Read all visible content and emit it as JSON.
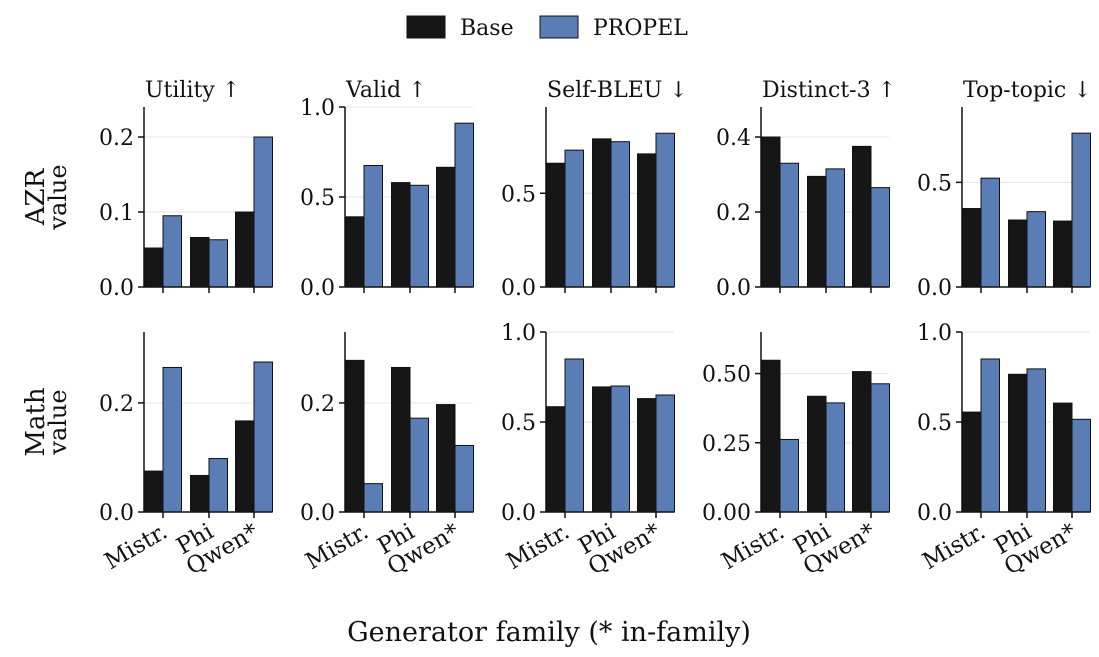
{
  "colors": {
    "base": "#161616",
    "propel": "#5a7db5"
  },
  "legend": [
    "Base",
    "PROPEL"
  ],
  "xlabel": "Generator family (* in-family)",
  "rows": [
    {
      "label": "AZR",
      "sub": "value"
    },
    {
      "label": "Math",
      "sub": "value"
    }
  ],
  "chart_data": {
    "type": "bar",
    "categories": [
      "Mistr.",
      "Phi",
      "Qwen*"
    ],
    "series_names": [
      "Base",
      "PROPEL"
    ],
    "panels": [
      {
        "row": 0,
        "col": 0,
        "title": "Utility ↑",
        "ylim": [
          0,
          0.24
        ],
        "yticks": [
          0.0,
          0.1,
          0.2
        ],
        "ytick_labels": [
          "0.0",
          "0.1",
          "0.2"
        ],
        "series": [
          {
            "name": "Base",
            "values": [
              0.052,
              0.066,
              0.1
            ]
          },
          {
            "name": "PROPEL",
            "values": [
              0.095,
              0.063,
              0.2
            ]
          }
        ]
      },
      {
        "row": 0,
        "col": 1,
        "title": "Valid ↑",
        "ylim": [
          0,
          1.0
        ],
        "yticks": [
          0.0,
          0.5,
          1.0
        ],
        "ytick_labels": [
          "0.0",
          "0.5",
          "1.0"
        ],
        "series": [
          {
            "name": "Base",
            "values": [
              0.39,
              0.58,
              0.665
            ]
          },
          {
            "name": "PROPEL",
            "values": [
              0.675,
              0.565,
              0.91
            ]
          }
        ]
      },
      {
        "row": 0,
        "col": 2,
        "title": "Self-BLEU ↓",
        "ylim": [
          0,
          0.96
        ],
        "yticks": [
          0.0,
          0.5
        ],
        "ytick_labels": [
          "0.0",
          "0.5"
        ],
        "series": [
          {
            "name": "Base",
            "values": [
              0.66,
              0.79,
              0.71
            ]
          },
          {
            "name": "PROPEL",
            "values": [
              0.73,
              0.775,
              0.82
            ]
          }
        ]
      },
      {
        "row": 0,
        "col": 3,
        "title": "Distinct-3 ↑",
        "ylim": [
          0,
          0.48
        ],
        "yticks": [
          0.0,
          0.2,
          0.4
        ],
        "ytick_labels": [
          "0.0",
          "0.2",
          "0.4"
        ],
        "series": [
          {
            "name": "Base",
            "values": [
              0.4,
              0.295,
              0.375
            ]
          },
          {
            "name": "PROPEL",
            "values": [
              0.33,
              0.315,
              0.265
            ]
          }
        ]
      },
      {
        "row": 0,
        "col": 4,
        "title": "Top-topic ↓",
        "ylim": [
          0,
          0.86
        ],
        "yticks": [
          0.0,
          0.5
        ],
        "ytick_labels": [
          "0.0",
          "0.5"
        ],
        "series": [
          {
            "name": "Base",
            "values": [
              0.375,
              0.32,
              0.315
            ]
          },
          {
            "name": "PROPEL",
            "values": [
              0.52,
              0.36,
              0.735
            ]
          }
        ]
      },
      {
        "row": 1,
        "col": 0,
        "title": "",
        "ylim": [
          0,
          0.33
        ],
        "yticks": [
          0.0,
          0.2
        ],
        "ytick_labels": [
          "0.0",
          "0.2"
        ],
        "series": [
          {
            "name": "Base",
            "values": [
              0.075,
              0.067,
              0.167
            ]
          },
          {
            "name": "PROPEL",
            "values": [
              0.265,
              0.098,
              0.275
            ]
          }
        ]
      },
      {
        "row": 1,
        "col": 1,
        "title": "",
        "ylim": [
          0,
          0.33
        ],
        "yticks": [
          0.0,
          0.2
        ],
        "ytick_labels": [
          "0.0",
          "0.2"
        ],
        "series": [
          {
            "name": "Base",
            "values": [
              0.278,
              0.265,
              0.197
            ]
          },
          {
            "name": "PROPEL",
            "values": [
              0.052,
              0.172,
              0.122
            ]
          }
        ]
      },
      {
        "row": 1,
        "col": 2,
        "title": "",
        "ylim": [
          0,
          1.0
        ],
        "yticks": [
          0.0,
          0.5,
          1.0
        ],
        "ytick_labels": [
          "0.0",
          "0.5",
          "1.0"
        ],
        "series": [
          {
            "name": "Base",
            "values": [
              0.585,
              0.695,
              0.63
            ]
          },
          {
            "name": "PROPEL",
            "values": [
              0.85,
              0.7,
              0.65
            ]
          }
        ]
      },
      {
        "row": 1,
        "col": 3,
        "title": "",
        "ylim": [
          0,
          0.65
        ],
        "yticks": [
          0.0,
          0.25,
          0.5
        ],
        "ytick_labels": [
          "0.00",
          "0.25",
          "0.50"
        ],
        "series": [
          {
            "name": "Base",
            "values": [
              0.548,
              0.418,
              0.507
            ]
          },
          {
            "name": "PROPEL",
            "values": [
              0.262,
              0.394,
              0.463
            ]
          }
        ]
      },
      {
        "row": 1,
        "col": 4,
        "title": "",
        "ylim": [
          0,
          1.0
        ],
        "yticks": [
          0.0,
          0.5,
          1.0
        ],
        "ytick_labels": [
          "0.0",
          "0.5",
          "1.0"
        ],
        "series": [
          {
            "name": "Base",
            "values": [
              0.555,
              0.765,
              0.605
            ]
          },
          {
            "name": "PROPEL",
            "values": [
              0.85,
              0.795,
              0.515
            ]
          }
        ]
      }
    ],
    "grid": "horizontal-light",
    "legend_position": "top-center"
  }
}
